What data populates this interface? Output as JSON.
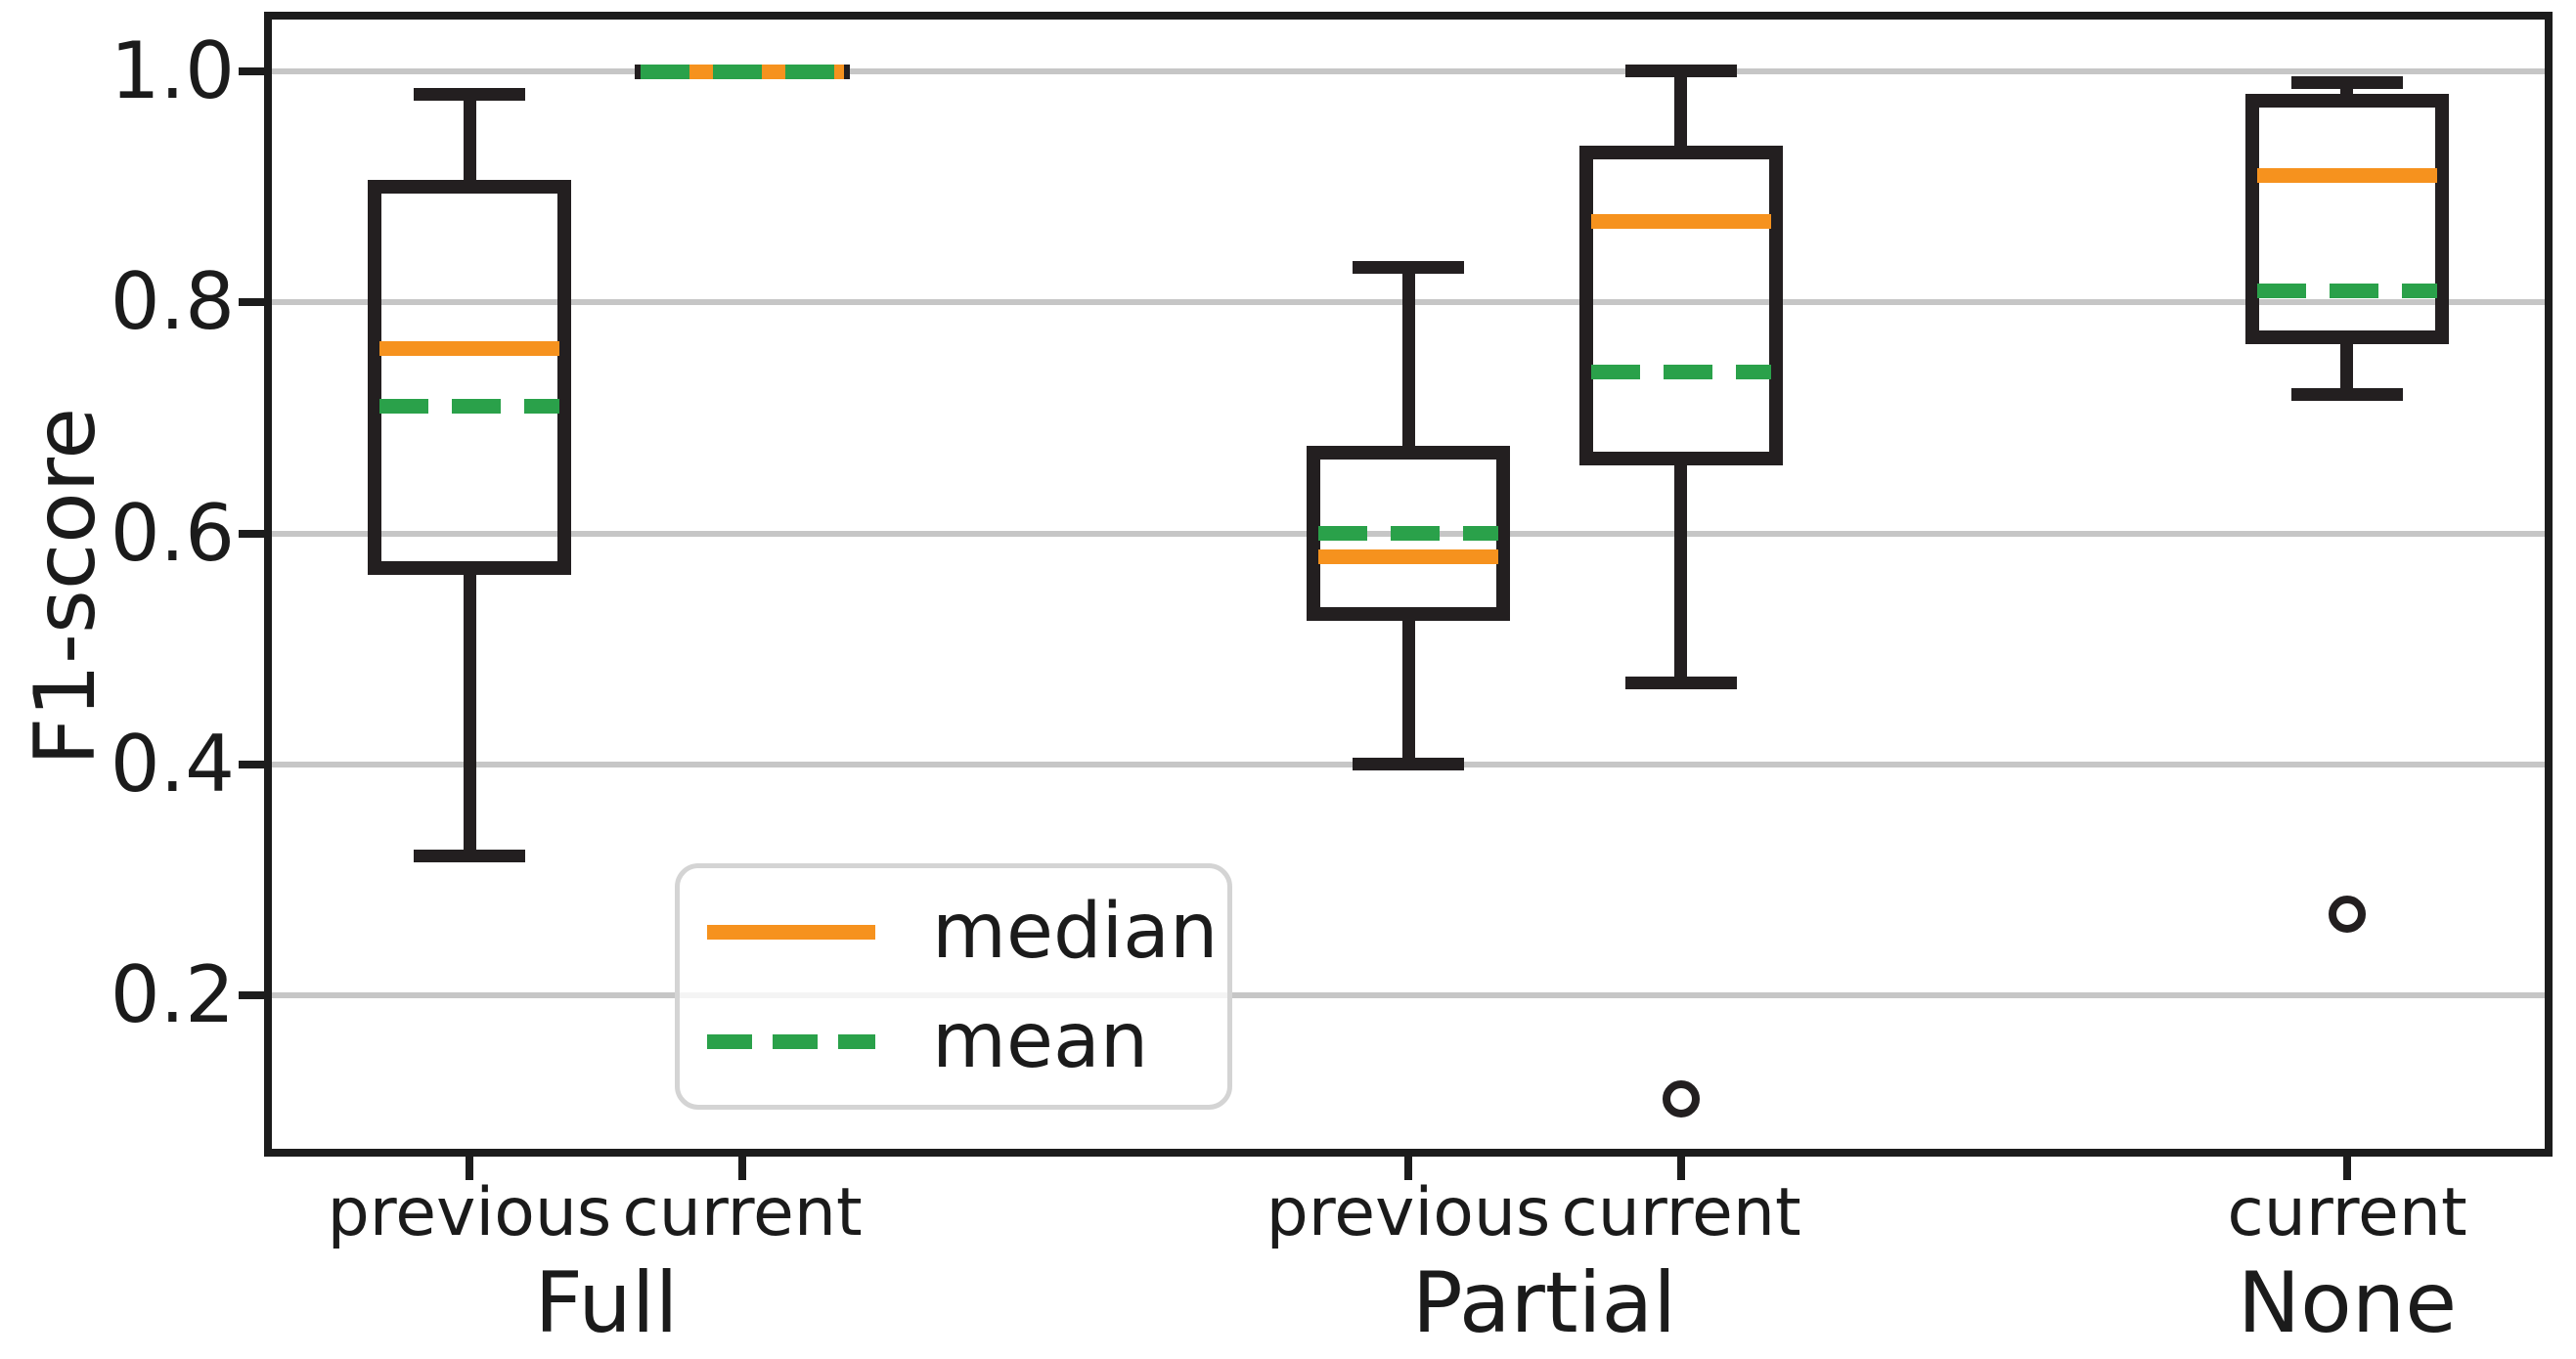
{
  "chart_data": {
    "type": "boxplot",
    "title": "",
    "ylabel": "F1-score",
    "ylim": [
      0.067,
      1.045
    ],
    "yticks": [
      0.2,
      0.4,
      0.6,
      0.8,
      1.0
    ],
    "ytick_decimals": 1,
    "grid": "horizontal-only",
    "colors": {
      "median": "#f6921e",
      "mean": "#2aa14a",
      "box": "#231f20",
      "gridline": "#c6c6c6",
      "text": "#1b1b1b"
    },
    "legend": {
      "position": "lower-left-of-center",
      "items": [
        {
          "label": "median",
          "color": "#f6921e",
          "style": "solid"
        },
        {
          "label": "mean",
          "color": "#2aa14a",
          "style": "dashed"
        }
      ]
    },
    "groups": [
      {
        "label": "Full",
        "boxes": [
          {
            "tick_label": "previous",
            "x_frac": 0.087,
            "whisker_low": 0.32,
            "q1": 0.57,
            "median": 0.76,
            "mean": 0.71,
            "q3": 0.9,
            "whisker_high": 0.98,
            "outliers": []
          },
          {
            "tick_label": "current",
            "x_frac": 0.207,
            "whisker_low": 1.0,
            "q1": 1.0,
            "median": 1.0,
            "mean": 1.0,
            "q3": 1.0,
            "whisker_high": 1.0,
            "outliers": []
          }
        ]
      },
      {
        "label": "Partial",
        "boxes": [
          {
            "tick_label": "previous",
            "x_frac": 0.5,
            "whisker_low": 0.4,
            "q1": 0.53,
            "median": 0.58,
            "mean": 0.6,
            "q3": 0.67,
            "whisker_high": 0.83,
            "outliers": []
          },
          {
            "tick_label": "current",
            "x_frac": 0.62,
            "whisker_low": 0.47,
            "q1": 0.665,
            "median": 0.87,
            "mean": 0.74,
            "q3": 0.93,
            "whisker_high": 1.0,
            "outliers": [
              0.11
            ]
          }
        ]
      },
      {
        "label": "None",
        "boxes": [
          {
            "tick_label": "current",
            "x_frac": 0.913,
            "whisker_low": 0.72,
            "q1": 0.77,
            "median": 0.91,
            "mean": 0.81,
            "q3": 0.975,
            "whisker_high": 0.99,
            "outliers": [
              0.27
            ]
          }
        ]
      }
    ]
  }
}
